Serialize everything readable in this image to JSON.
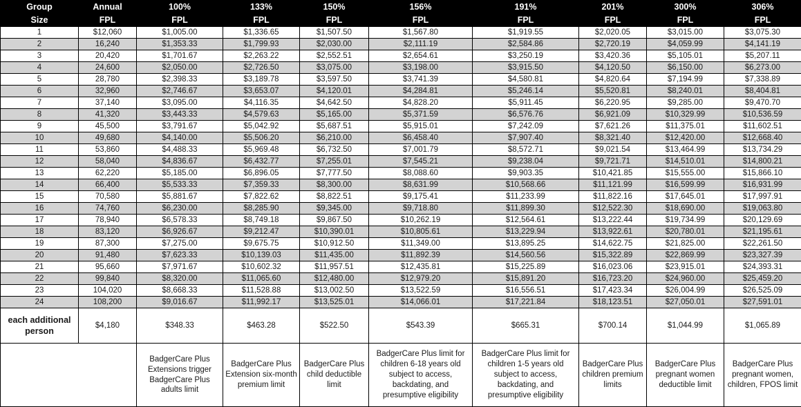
{
  "table": {
    "header": [
      {
        "line1": "Group",
        "line2": "Size"
      },
      {
        "line1": "Annual",
        "line2": "FPL"
      },
      {
        "line1": "100%",
        "line2": "FPL"
      },
      {
        "line1": "133%",
        "line2": "FPL"
      },
      {
        "line1": "150%",
        "line2": "FPL"
      },
      {
        "line1": "156%",
        "line2": "FPL"
      },
      {
        "line1": "191%",
        "line2": "FPL"
      },
      {
        "line1": "201%",
        "line2": "FPL"
      },
      {
        "line1": "300%",
        "line2": "FPL"
      },
      {
        "line1": "306%",
        "line2": "FPL"
      }
    ],
    "rows": [
      [
        "1",
        "$12,060",
        "$1,005.00",
        "$1,336.65",
        "$1,507.50",
        "$1,567.80",
        "$1,919.55",
        "$2,020.05",
        "$3,015.00",
        "$3,075.30"
      ],
      [
        "2",
        "16,240",
        "$1,353.33",
        "$1,799.93",
        "$2,030.00",
        "$2,111.19",
        "$2,584.86",
        "$2,720.19",
        "$4,059.99",
        "$4,141.19"
      ],
      [
        "3",
        "20,420",
        "$1,701.67",
        "$2,263.22",
        "$2,552.51",
        "$2,654.61",
        "$3,250.19",
        "$3,420.36",
        "$5,105.01",
        "$5,207.11"
      ],
      [
        "4",
        "24,600",
        "$2,050.00",
        "$2,726.50",
        "$3,075.00",
        "$3,198.00",
        "$3,915.50",
        "$4,120.50",
        "$6,150.00",
        "$6,273.00"
      ],
      [
        "5",
        "28,780",
        "$2,398.33",
        "$3,189.78",
        "$3,597.50",
        "$3,741.39",
        "$4,580.81",
        "$4,820.64",
        "$7,194.99",
        "$7,338.89"
      ],
      [
        "6",
        "32,960",
        "$2,746.67",
        "$3,653.07",
        "$4,120.01",
        "$4,284.81",
        "$5,246.14",
        "$5,520.81",
        "$8,240.01",
        "$8,404.81"
      ],
      [
        "7",
        "37,140",
        "$3,095.00",
        "$4,116.35",
        "$4,642.50",
        "$4,828.20",
        "$5,911.45",
        "$6,220.95",
        "$9,285.00",
        "$9,470.70"
      ],
      [
        "8",
        "41,320",
        "$3,443.33",
        "$4,579.63",
        "$5,165.00",
        "$5,371.59",
        "$6,576.76",
        "$6,921.09",
        "$10,329.99",
        "$10,536.59"
      ],
      [
        "9",
        "45,500",
        "$3,791.67",
        "$5,042.92",
        "$5,687.51",
        "$5,915.01",
        "$7,242.09",
        "$7,621.26",
        "$11,375.01",
        "$11,602.51"
      ],
      [
        "10",
        "49,680",
        "$4,140.00",
        "$5,506.20",
        "$6,210.00",
        "$6,458.40",
        "$7,907.40",
        "$8,321.40",
        "$12,420.00",
        "$12,668.40"
      ],
      [
        "11",
        "53,860",
        "$4,488.33",
        "$5,969.48",
        "$6,732.50",
        "$7,001.79",
        "$8,572.71",
        "$9,021.54",
        "$13,464.99",
        "$13,734.29"
      ],
      [
        "12",
        "58,040",
        "$4,836.67",
        "$6,432.77",
        "$7,255.01",
        "$7,545.21",
        "$9,238.04",
        "$9,721.71",
        "$14,510.01",
        "$14,800.21"
      ],
      [
        "13",
        "62,220",
        "$5,185.00",
        "$6,896.05",
        "$7,777.50",
        "$8,088.60",
        "$9,903.35",
        "$10,421.85",
        "$15,555.00",
        "$15,866.10"
      ],
      [
        "14",
        "66,400",
        "$5,533.33",
        "$7,359.33",
        "$8,300.00",
        "$8,631.99",
        "$10,568.66",
        "$11,121.99",
        "$16,599.99",
        "$16,931.99"
      ],
      [
        "15",
        "70,580",
        "$5,881.67",
        "$7,822.62",
        "$8,822.51",
        "$9,175.41",
        "$11,233.99",
        "$11,822.16",
        "$17,645.01",
        "$17,997.91"
      ],
      [
        "16",
        "74,760",
        "$6,230.00",
        "$8,285.90",
        "$9,345.00",
        "$9,718.80",
        "$11,899.30",
        "$12,522.30",
        "$18,690.00",
        "$19,063.80"
      ],
      [
        "17",
        "78,940",
        "$6,578.33",
        "$8,749.18",
        "$9,867.50",
        "$10,262.19",
        "$12,564.61",
        "$13,222.44",
        "$19,734.99",
        "$20,129.69"
      ],
      [
        "18",
        "83,120",
        "$6,926.67",
        "$9,212.47",
        "$10,390.01",
        "$10,805.61",
        "$13,229.94",
        "$13,922.61",
        "$20,780.01",
        "$21,195.61"
      ],
      [
        "19",
        "87,300",
        "$7,275.00",
        "$9,675.75",
        "$10,912.50",
        "$11,349.00",
        "$13,895.25",
        "$14,622.75",
        "$21,825.00",
        "$22,261.50"
      ],
      [
        "20",
        "91,480",
        "$7,623.33",
        "$10,139.03",
        "$11,435.00",
        "$11,892.39",
        "$14,560.56",
        "$15,322.89",
        "$22,869.99",
        "$23,327.39"
      ],
      [
        "21",
        "95,660",
        "$7,971.67",
        "$10,602.32",
        "$11,957.51",
        "$12,435.81",
        "$15,225.89",
        "$16,023.06",
        "$23,915.01",
        "$24,393.31"
      ],
      [
        "22",
        "99,840",
        "$8,320.00",
        "$11,065.60",
        "$12,480.00",
        "$12,979.20",
        "$15,891.20",
        "$16,723.20",
        "$24,960.00",
        "$25,459.20"
      ],
      [
        "23",
        "104,020",
        "$8,668.33",
        "$11,528.88",
        "$13,002.50",
        "$13,522.59",
        "$16,556.51",
        "$17,423.34",
        "$26,004.99",
        "$26,525.09"
      ],
      [
        "24",
        "108,200",
        "$9,016.67",
        "$11,992.17",
        "$13,525.01",
        "$14,066.01",
        "$17,221.84",
        "$18,123.51",
        "$27,050.01",
        "$27,591.01"
      ]
    ],
    "additional_row": {
      "label": "each additional person",
      "values": [
        "$4,180",
        "$348.33",
        "$463.28",
        "$522.50",
        "$543.39",
        "$665.31",
        "$700.14",
        "$1,044.99",
        "$1,065.89"
      ]
    },
    "footer": [
      "BadgerCare Plus Extensions trigger BadgerCare Plus adults limit",
      "BadgerCare Plus Extension six-month premium limit",
      "BadgerCare Plus child deductible limit",
      "BadgerCare Plus limit for children 6-18 years old subject to access, backdating, and presumptive eligibility",
      "BadgerCare Plus limit for children 1-5 years old subject to access, backdating, and presumptive eligibility",
      "BadgerCare Plus children premium limits",
      "BadgerCare Plus pregnant women deductible limit",
      "BadgerCare Plus pregnant women, children, FPOS limit"
    ],
    "colors": {
      "header_bg": "#000000",
      "header_text": "#ffffff",
      "stripe_bg": "#d3d3d3",
      "border": "#000000"
    }
  }
}
